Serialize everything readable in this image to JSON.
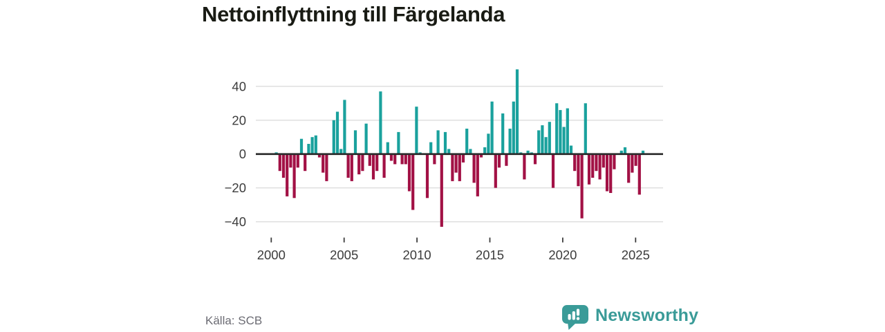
{
  "header": {
    "title": "Nettoinflyttning till Färgelanda"
  },
  "footer": {
    "source_label": "Källa: SCB",
    "brand": {
      "name": "Newsworthy",
      "icon": "bar-chart-speech-bubble-icon",
      "color": "#3a9b98"
    }
  },
  "colors": {
    "background": "#ffffff",
    "positive_bar": "#1aa19d",
    "negative_bar": "#a21145",
    "zero_line": "#2b2b2b",
    "gridline": "#dddddd",
    "axis_text": "#3c3c3c",
    "title_text": "#191b14",
    "source_text": "#6b6b73"
  },
  "chart_data": {
    "type": "bar",
    "title": "Nettoinflyttning till Färgelanda",
    "xlabel": "",
    "ylabel": "",
    "frequency": "quarterly",
    "x_start": "2000Q1",
    "x_end": "2025Q3",
    "x_tick_labels": [
      "2000",
      "2005",
      "2010",
      "2015",
      "2020",
      "2025"
    ],
    "x_tick_years": [
      2000,
      2005,
      2010,
      2015,
      2020,
      2025
    ],
    "y_tick_labels": [
      "40",
      "20",
      "0",
      "−20",
      "−40"
    ],
    "y_ticks": [
      40,
      20,
      0,
      -20,
      -40
    ],
    "ylim": [
      -45,
      52
    ],
    "grid": "horizontal",
    "legend": "none",
    "series": [
      {
        "name": "Nettoinflyttning",
        "values_by_year": {
          "2000": [
            1,
            -10,
            -14,
            -25
          ],
          "2001": [
            -8,
            -26,
            -8,
            9
          ],
          "2002": [
            -10,
            6,
            10,
            11
          ],
          "2003": [
            -2,
            -11,
            -16,
            0
          ],
          "2004": [
            20,
            25,
            3,
            32
          ],
          "2005": [
            -14,
            -16,
            14,
            -12
          ],
          "2006": [
            -10,
            18,
            -7,
            -15
          ],
          "2007": [
            -10,
            37,
            -14,
            7
          ],
          "2008": [
            -4,
            -6,
            13,
            -6
          ],
          "2009": [
            -6,
            -22,
            -33,
            28
          ],
          "2010": [
            1,
            0,
            -26,
            7
          ],
          "2011": [
            -6,
            14,
            -43,
            13
          ],
          "2012": [
            3,
            -16,
            -11,
            -16
          ],
          "2013": [
            -5,
            15,
            3,
            -17
          ],
          "2014": [
            -25,
            -2,
            4,
            12
          ],
          "2015": [
            31,
            -20,
            -8,
            24
          ],
          "2016": [
            -7,
            15,
            31,
            50
          ],
          "2017": [
            1,
            -15,
            2,
            1
          ],
          "2018": [
            -6,
            14,
            17,
            10
          ],
          "2019": [
            19,
            -20,
            30,
            26
          ],
          "2020": [
            16,
            27,
            5,
            -10
          ],
          "2021": [
            -19,
            -38,
            30,
            -18
          ],
          "2022": [
            -14,
            -10,
            -15,
            -8
          ],
          "2023": [
            -22,
            -23,
            -9,
            0
          ],
          "2024": [
            2,
            4,
            -17,
            -11
          ],
          "2025": [
            -7,
            -24,
            2
          ]
        }
      }
    ]
  }
}
